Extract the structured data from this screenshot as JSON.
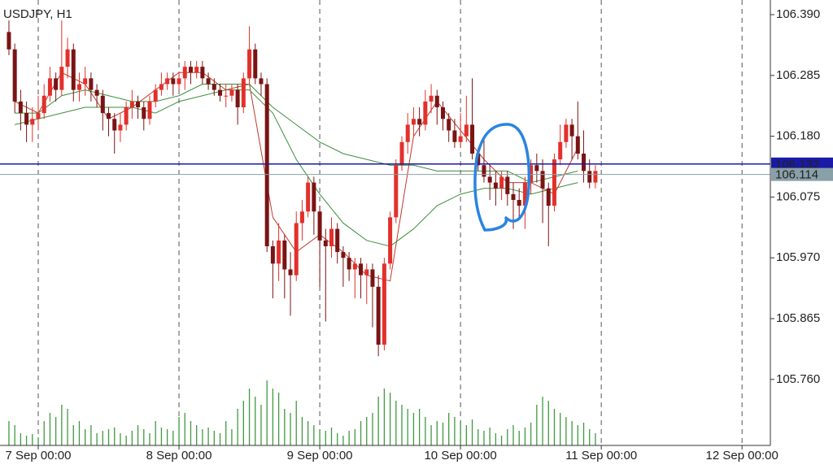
{
  "chart_data": {
    "type": "candlestick",
    "title": "USDJPY, H1",
    "x": [
      -5,
      -4,
      -3,
      -2,
      -1,
      0,
      1,
      2,
      3,
      4,
      5,
      6,
      7,
      8,
      9,
      10,
      11,
      12,
      13,
      14,
      15,
      16,
      17,
      18,
      19,
      20,
      21,
      22,
      23,
      24,
      25,
      26,
      27,
      28,
      29,
      30,
      31,
      32,
      33,
      34,
      35,
      36,
      37,
      38,
      39,
      40,
      41,
      42,
      43,
      44,
      45,
      46,
      47,
      48,
      49,
      50,
      51,
      52,
      53,
      54,
      55,
      56,
      57,
      58,
      59,
      60,
      61,
      62,
      63,
      64,
      65,
      66,
      67,
      68,
      69,
      70,
      71,
      72,
      73,
      74,
      75,
      76,
      77,
      78,
      79,
      80,
      81,
      82,
      83,
      84,
      85,
      86,
      87,
      88,
      89,
      90,
      91,
      92,
      93,
      94,
      95
    ],
    "open": [
      106.36,
      106.33,
      106.24,
      106.22,
      106.2,
      106.21,
      106.22,
      106.25,
      106.28,
      106.26,
      106.3,
      106.33,
      106.26,
      106.27,
      106.28,
      106.26,
      106.25,
      106.22,
      106.21,
      106.19,
      106.2,
      106.23,
      106.24,
      106.23,
      106.21,
      106.24,
      106.26,
      106.27,
      106.28,
      106.27,
      106.28,
      106.3,
      106.29,
      106.3,
      106.28,
      106.27,
      106.26,
      106.25,
      106.25,
      106.26,
      106.23,
      106.28,
      106.33,
      106.28,
      106.27,
      105.99,
      105.96,
      106.0,
      105.95,
      105.94,
      106.03,
      106.05,
      106.1,
      106.05,
      106.0,
      105.99,
      106.02,
      105.98,
      105.97,
      105.95,
      105.96,
      105.94,
      105.95,
      105.92,
      105.82,
      105.96,
      106.04,
      106.13,
      106.17,
      106.2,
      106.21,
      106.2,
      106.24,
      106.25,
      106.23,
      106.21,
      106.19,
      106.17,
      106.18,
      106.2,
      106.15,
      106.13,
      106.11,
      106.1,
      106.09,
      106.11,
      106.08,
      106.07,
      106.06,
      106.1,
      106.13,
      106.12,
      106.09,
      106.06,
      106.14,
      106.17,
      106.2,
      106.18,
      106.15,
      106.12,
      106.1
    ],
    "high": [
      106.38,
      106.34,
      106.26,
      106.24,
      106.23,
      106.25,
      106.27,
      106.3,
      106.29,
      106.38,
      106.35,
      106.34,
      106.29,
      106.3,
      106.29,
      106.27,
      106.26,
      106.23,
      106.22,
      106.22,
      106.24,
      106.26,
      106.25,
      106.24,
      106.25,
      106.27,
      106.29,
      106.29,
      106.29,
      106.29,
      106.31,
      106.31,
      106.31,
      106.31,
      106.29,
      106.28,
      106.27,
      106.27,
      106.27,
      106.27,
      106.29,
      106.37,
      106.34,
      106.29,
      106.28,
      106.0,
      106.03,
      106.01,
      105.98,
      106.05,
      106.07,
      106.11,
      106.11,
      106.06,
      106.02,
      106.04,
      106.03,
      105.99,
      105.98,
      105.97,
      105.97,
      105.96,
      105.96,
      105.94,
      105.97,
      106.05,
      106.14,
      106.18,
      106.22,
      106.23,
      106.23,
      106.26,
      106.27,
      106.26,
      106.24,
      106.22,
      106.21,
      106.22,
      106.25,
      106.28,
      106.16,
      106.18,
      106.13,
      106.12,
      106.12,
      106.12,
      106.1,
      106.09,
      106.11,
      106.14,
      106.15,
      106.14,
      106.1,
      106.15,
      106.2,
      106.21,
      106.21,
      106.24,
      106.19,
      106.14,
      106.13
    ],
    "low": [
      106.32,
      106.22,
      106.19,
      106.17,
      106.17,
      106.19,
      106.21,
      106.24,
      106.24,
      106.25,
      106.28,
      106.24,
      106.24,
      106.25,
      106.24,
      106.23,
      106.19,
      106.18,
      106.15,
      106.17,
      106.19,
      106.21,
      106.21,
      106.19,
      106.2,
      106.23,
      106.25,
      106.26,
      106.25,
      106.26,
      106.26,
      106.27,
      106.28,
      106.27,
      106.26,
      106.25,
      106.24,
      106.23,
      106.24,
      106.2,
      106.22,
      106.27,
      106.27,
      106.25,
      105.98,
      105.9,
      105.93,
      105.9,
      105.87,
      105.93,
      106.0,
      106.04,
      106.01,
      105.92,
      105.86,
      105.97,
      105.96,
      105.92,
      105.93,
      105.9,
      105.9,
      105.89,
      105.85,
      105.8,
      105.81,
      105.95,
      106.03,
      106.12,
      106.15,
      106.18,
      106.18,
      106.19,
      106.22,
      106.2,
      106.19,
      106.17,
      106.16,
      106.16,
      106.17,
      106.14,
      106.12,
      106.1,
      106.07,
      106.06,
      106.07,
      106.06,
      106.02,
      106.04,
      106.02,
      106.08,
      106.1,
      106.03,
      105.99,
      106.05,
      106.13,
      106.16,
      106.14,
      106.14,
      106.1,
      106.09,
      106.09
    ],
    "close": [
      106.33,
      106.24,
      106.22,
      106.2,
      106.21,
      106.22,
      106.25,
      106.28,
      106.26,
      106.3,
      106.33,
      106.26,
      106.27,
      106.28,
      106.26,
      106.25,
      106.22,
      106.21,
      106.19,
      106.2,
      106.23,
      106.24,
      106.23,
      106.21,
      106.24,
      106.26,
      106.27,
      106.28,
      106.27,
      106.28,
      106.3,
      106.29,
      106.3,
      106.28,
      106.27,
      106.26,
      106.25,
      106.25,
      106.26,
      106.23,
      106.28,
      106.33,
      106.28,
      106.27,
      105.99,
      105.96,
      106.0,
      105.95,
      105.94,
      106.03,
      106.05,
      106.1,
      106.05,
      106.0,
      105.99,
      106.02,
      105.98,
      105.97,
      105.95,
      105.96,
      105.94,
      105.95,
      105.92,
      105.82,
      105.96,
      106.04,
      106.13,
      106.17,
      106.2,
      106.21,
      106.2,
      106.24,
      106.25,
      106.23,
      106.21,
      106.19,
      106.17,
      106.18,
      106.2,
      106.15,
      106.13,
      106.11,
      106.1,
      106.09,
      106.11,
      106.08,
      106.07,
      106.06,
      106.1,
      106.13,
      106.12,
      106.09,
      106.06,
      106.14,
      106.17,
      106.2,
      106.18,
      106.15,
      106.12,
      106.1,
      106.12
    ],
    "volume": [
      30,
      25,
      15,
      12,
      14,
      10,
      30,
      40,
      35,
      50,
      45,
      25,
      30,
      20,
      25,
      15,
      18,
      20,
      22,
      15,
      12,
      18,
      25,
      20,
      15,
      30,
      22,
      20,
      18,
      35,
      40,
      30,
      25,
      20,
      22,
      18,
      15,
      30,
      20,
      45,
      55,
      70,
      60,
      50,
      80,
      70,
      65,
      45,
      40,
      55,
      35,
      30,
      25,
      20,
      18,
      22,
      15,
      12,
      18,
      20,
      30,
      35,
      40,
      60,
      70,
      65,
      55,
      50,
      45,
      40,
      45,
      35,
      25,
      30,
      28,
      40,
      35,
      30,
      25,
      32,
      20,
      18,
      22,
      15,
      12,
      20,
      25,
      18,
      22,
      28,
      50,
      60,
      55,
      45,
      40,
      35,
      30,
      25,
      28,
      20,
      15
    ],
    "up_color": "#e3302b",
    "down_color": "#7a1414",
    "volume_color": "#3f9a3f",
    "ma_x": [
      -4,
      0,
      4,
      8,
      12,
      16,
      20,
      24,
      28,
      32,
      36,
      40,
      44,
      48,
      52,
      56,
      60,
      64,
      68,
      72,
      76,
      80,
      84,
      88,
      92
    ],
    "ma": [
      {
        "color": "#c0392b",
        "values": [
          106.24,
          106.22,
          106.29,
          106.27,
          106.21,
          106.23,
          106.26,
          106.29,
          106.29,
          106.26,
          106.27,
          106.04,
          105.98,
          106.01,
          105.98,
          105.94,
          105.93,
          106.18,
          106.24,
          106.19,
          106.14,
          106.1,
          106.1,
          106.08,
          106.16
        ]
      },
      {
        "color": "#3c8f3c",
        "values": [
          106.22,
          106.22,
          106.25,
          106.26,
          106.25,
          106.24,
          106.24,
          106.25,
          106.27,
          106.27,
          106.27,
          106.23,
          106.2,
          106.17,
          106.15,
          106.14,
          106.13,
          106.13,
          106.12,
          106.12,
          106.12,
          106.12,
          106.1,
          106.11,
          106.12
        ]
      },
      {
        "color": "#3c8f3c",
        "values": [
          106.2,
          106.21,
          106.22,
          106.23,
          106.23,
          106.23,
          106.22,
          106.24,
          106.25,
          106.26,
          106.26,
          106.22,
          106.14,
          106.08,
          106.03,
          106.0,
          105.99,
          106.02,
          106.06,
          106.08,
          106.09,
          106.09,
          106.08,
          106.09,
          106.1
        ]
      }
    ],
    "price_lines": [
      {
        "value": 106.132,
        "color": "#1a1aa6"
      },
      {
        "value": 106.114,
        "color": "#8aa0a8"
      }
    ],
    "xlim": [
      -6.52,
      124.83
    ],
    "ylim": [
      105.646,
      106.4153
    ],
    "xticks": [
      {
        "value": 0,
        "label": "7 Sep 00:00"
      },
      {
        "value": 24,
        "label": "8 Sep 00:00"
      },
      {
        "value": 48,
        "label": "9 Sep 00:00"
      },
      {
        "value": 72,
        "label": "10 Sep 00:00"
      },
      {
        "value": 96,
        "label": "11 Sep 00:00"
      },
      {
        "value": 120,
        "label": "12 Sep 00:00"
      }
    ],
    "yticks": [
      {
        "value": 106.39,
        "label": "106.390"
      },
      106.285,
      {
        "value": 106.18,
        "label": "106.180"
      },
      106.075,
      {
        "value": 105.97,
        "label": "105.970"
      },
      105.865,
      {
        "value": 105.76,
        "label": "105.760"
      }
    ]
  }
}
